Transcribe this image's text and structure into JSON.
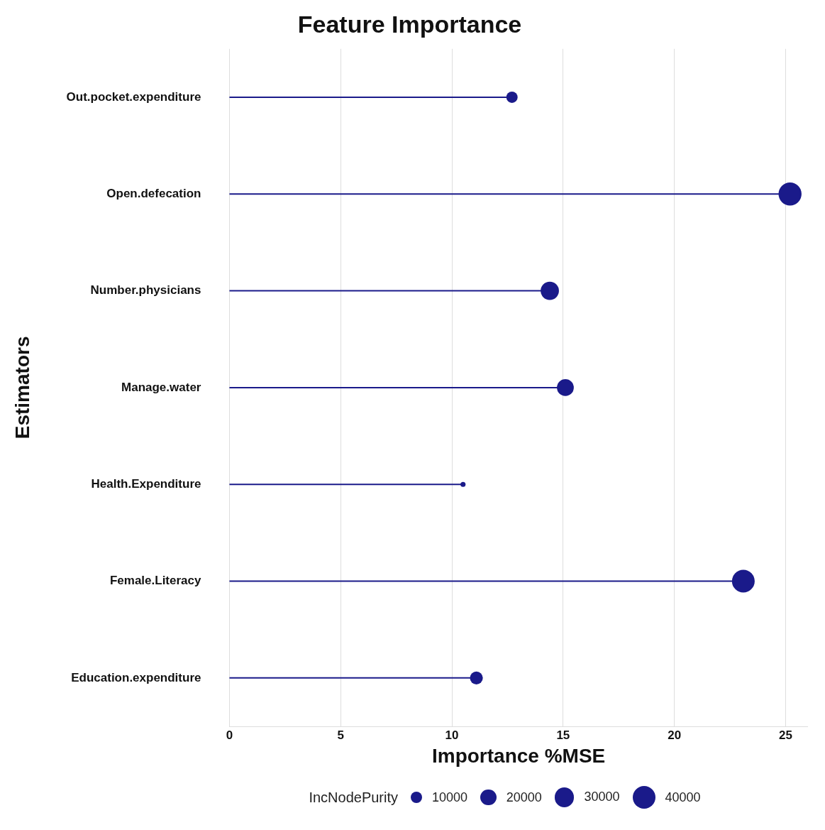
{
  "chart_data": {
    "type": "lollipop",
    "orientation": "horizontal",
    "title": "Feature Importance",
    "xlabel": "Importance %MSE",
    "ylabel": "Estimators",
    "legend_title": "IncNodePurity",
    "categories": [
      "Out.pocket.expenditure",
      "Open.defecation",
      "Number.physicians",
      "Manage.water",
      "Health.Expenditure",
      "Female.Literacy",
      "Education.expenditure"
    ],
    "values": [
      12.7,
      25.2,
      14.4,
      15.1,
      10.5,
      23.1,
      11.1
    ],
    "sizes": [
      10000,
      41000,
      26000,
      22000,
      2000,
      40000,
      13000
    ],
    "size_legend": [
      10000,
      20000,
      30000,
      40000
    ],
    "color": "#1a1a8a",
    "xlim": [
      0,
      26
    ],
    "xticks": [
      0,
      5,
      10,
      15,
      20,
      25
    ],
    "grid": "x"
  }
}
